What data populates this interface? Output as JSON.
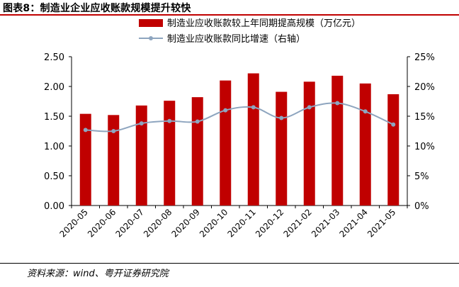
{
  "title": "图表8：制造业企业应收账款规模提升较快",
  "source": "资料来源：wind、粤开证券研究院",
  "colors": {
    "bar": "#c00000",
    "line": "#8ea5bf",
    "rule": "#c00000"
  },
  "chart_data": {
    "type": "bar",
    "categories": [
      "2020-05",
      "2020-06",
      "2020-07",
      "2020-08",
      "2020-09",
      "2020-10",
      "2020-11",
      "2020-12",
      "2021-02",
      "2021-03",
      "2021-04",
      "2021-05"
    ],
    "series": [
      {
        "name": "制造业应收账款较上年同期提高规模（万亿元）",
        "type": "bar",
        "axis": "left",
        "values": [
          1.54,
          1.52,
          1.68,
          1.76,
          1.82,
          2.1,
          2.22,
          1.91,
          2.08,
          2.18,
          2.05,
          1.87
        ]
      },
      {
        "name": "制造业应收账款同比增速（右轴）",
        "type": "line",
        "axis": "right",
        "values": [
          12.7,
          12.5,
          13.8,
          14.2,
          14.1,
          16.0,
          16.5,
          14.7,
          16.5,
          17.2,
          15.8,
          13.6
        ]
      }
    ],
    "ylim_left": [
      0,
      2.5
    ],
    "yticks_left": [
      "0.00",
      "0.50",
      "1.00",
      "1.50",
      "2.00",
      "2.50"
    ],
    "ylim_right": [
      0,
      25
    ],
    "yticks_right": [
      "0%",
      "5%",
      "10%",
      "15%",
      "20%",
      "25%"
    ]
  }
}
